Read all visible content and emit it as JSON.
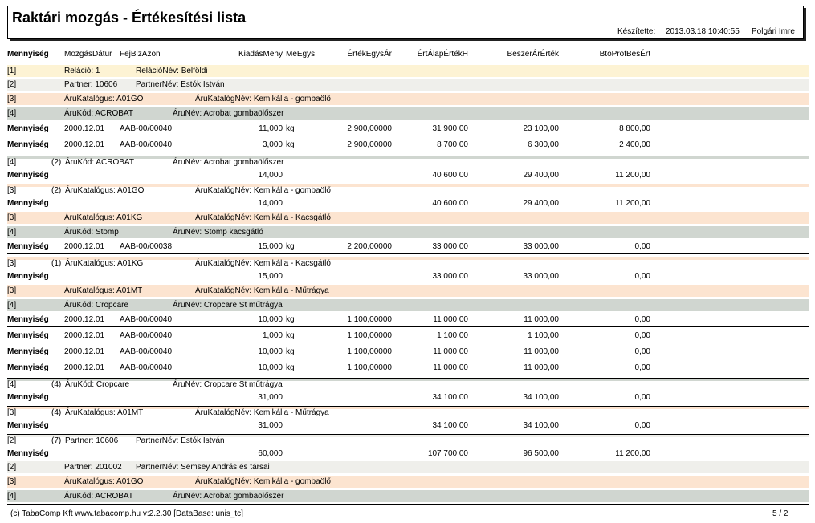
{
  "header": {
    "title": "Raktári mozgás - Értékesítési lista",
    "created_label": "Készítette:",
    "created_at": "2013.03.18 10:40:55",
    "author": "Polgári Imre"
  },
  "columns": {
    "mennyiseg": "Mennyiség",
    "mozgas_datum": "MozgásDátur",
    "fej_biz_azon": "FejBizAzon",
    "kiadas_meny": "KiadásMeny",
    "me_egys": "MeEgys",
    "ertek_egys_ar": "ÉrtékEgysÁr",
    "ert_alap_ertek": "ÉrtÁlapÉrtékH",
    "beszer_ar_ertek": "BeszerÁrÉrték",
    "bto_prof_bes_ert": "BtoProfBesÉrt"
  },
  "colors": {
    "relacio_bg": "#fdf3d4",
    "partner_bg": "#efefeb",
    "katalogus_bg": "#fce4d0",
    "arukod_bg": "#d0d6d0"
  },
  "rows": [
    {
      "kind": "relacio",
      "y": 81,
      "h": 15,
      "level": "[1]",
      "label1": "Reláció:  1",
      "label2": "RelációNév:  Belföldi"
    },
    {
      "kind": "partner",
      "y": 98,
      "h": 15,
      "level": "[2]",
      "label1": "Partner: 10606",
      "label2": "PartnerNév:  Estók István"
    },
    {
      "kind": "katalogus",
      "y": 116,
      "h": 15,
      "level": "[3]",
      "label1": "ÁruKatalógus: A01GO",
      "label2": "ÁruKatalógNév: Kemikália - gombaölő"
    },
    {
      "kind": "arukod",
      "y": 134,
      "h": 15,
      "level": "[4]",
      "label1": "ÁruKód: ACROBAT",
      "label2": "ÁruNév:  Acrobat gombaölőszer"
    },
    {
      "kind": "detail",
      "y": 152,
      "h": 18,
      "mennyiseg": "Mennyiség",
      "datum": "2000.12.01",
      "biz": "AAB-00/00040",
      "kiadas": "11,000",
      "me": "kg",
      "egysar": "2 900,00000",
      "alap": "31 900,00",
      "beszer": "23 100,00",
      "bto": "8 800,00"
    },
    {
      "kind": "detail",
      "y": 172,
      "h": 18,
      "mennyiseg": "Mennyiség",
      "datum": "2000.12.01",
      "biz": "AAB-00/00040",
      "kiadas": "3,000",
      "me": "kg",
      "egysar": "2 900,00000",
      "alap": "8 700,00",
      "beszer": "6 300,00",
      "bto": "2 400,00"
    },
    {
      "kind": "subtotal",
      "y": 194,
      "h": 34,
      "level": "[4]",
      "count": "(2)",
      "label1": "ÁruKód: ACROBAT",
      "label2": "ÁruNév:  Acrobat gombaölőszer",
      "mennyiseg": "Mennyiség",
      "kiadas": "14,000",
      "alap": "40 600,00",
      "beszer": "29 400,00",
      "bto": "11 200,00",
      "bar": "arukod"
    },
    {
      "kind": "subtotal",
      "y": 229,
      "h": 34,
      "level": "[3]",
      "count": "(2)",
      "label1": "ÁruKatalógus: A01GO",
      "label2": "ÁruKatalógNév: Kemikália - gombaölő",
      "mennyiseg": "Mennyiség",
      "kiadas": "14,000",
      "alap": "40 600,00",
      "beszer": "29 400,00",
      "bto": "11 200,00",
      "bar": "katalogus"
    },
    {
      "kind": "katalogus",
      "y": 264,
      "h": 15,
      "level": "[3]",
      "label1": "ÁruKatalógus: A01KG",
      "label2": "ÁruKatalógNév: Kemikália - Kacsgátló"
    },
    {
      "kind": "arukod",
      "y": 282,
      "h": 15,
      "level": "[4]",
      "label1": "ÁruKód: Stomp",
      "label2": "ÁruNév:  Stomp kacsgátló"
    },
    {
      "kind": "detail",
      "y": 299,
      "h": 18,
      "mennyiseg": "Mennyiség",
      "datum": "2000.12.01",
      "biz": "AAB-00/00038",
      "kiadas": "15,000",
      "me": "kg",
      "egysar": "2 200,00000",
      "alap": "33 000,00",
      "beszer": "33 000,00",
      "bto": "0,00"
    },
    {
      "kind": "subtotal",
      "y": 320,
      "h": 34,
      "level": "[3]",
      "count": "(1)",
      "label1": "ÁruKatalógus: A01KG",
      "label2": "ÁruKatalógNév: Kemikália - Kacsgátló",
      "mennyiseg": "Mennyiség",
      "kiadas": "15,000",
      "alap": "33 000,00",
      "beszer": "33 000,00",
      "bto": "0,00",
      "bar": "katalogus"
    },
    {
      "kind": "katalogus",
      "y": 355,
      "h": 15,
      "level": "[3]",
      "label1": "ÁruKatalógus: A01MT",
      "label2": "ÁruKatalógNév: Kemikália - Műtrágya"
    },
    {
      "kind": "arukod",
      "y": 373,
      "h": 15,
      "level": "[4]",
      "label1": "ÁruKód: Cropcare",
      "label2": "ÁruNév:  Cropcare St műtrágya"
    },
    {
      "kind": "detail",
      "y": 390,
      "h": 18,
      "mennyiseg": "Mennyiség",
      "datum": "2000.12.01",
      "biz": "AAB-00/00040",
      "kiadas": "10,000",
      "me": "kg",
      "egysar": "1 100,00000",
      "alap": "11 000,00",
      "beszer": "11 000,00",
      "bto": "0,00"
    },
    {
      "kind": "detail",
      "y": 410,
      "h": 18,
      "mennyiseg": "Mennyiség",
      "datum": "2000.12.01",
      "biz": "AAB-00/00040",
      "kiadas": "1,000",
      "me": "kg",
      "egysar": "1 100,00000",
      "alap": "1 100,00",
      "beszer": "1 100,00",
      "bto": "0,00"
    },
    {
      "kind": "detail",
      "y": 430,
      "h": 18,
      "mennyiseg": "Mennyiség",
      "datum": "2000.12.01",
      "biz": "AAB-00/00040",
      "kiadas": "10,000",
      "me": "kg",
      "egysar": "1 100,00000",
      "alap": "11 000,00",
      "beszer": "11 000,00",
      "bto": "0,00"
    },
    {
      "kind": "detail",
      "y": 450,
      "h": 18,
      "mennyiseg": "Mennyiség",
      "datum": "2000.12.01",
      "biz": "AAB-00/00040",
      "kiadas": "10,000",
      "me": "kg",
      "egysar": "1 100,00000",
      "alap": "11 000,00",
      "beszer": "11 000,00",
      "bto": "0,00"
    },
    {
      "kind": "subtotal",
      "y": 471,
      "h": 34,
      "level": "[4]",
      "count": "(4)",
      "label1": "ÁruKód: Cropcare",
      "label2": "ÁruNév:  Cropcare St műtrágya",
      "mennyiseg": "Mennyiség",
      "kiadas": "31,000",
      "alap": "34 100,00",
      "beszer": "34 100,00",
      "bto": "0,00",
      "bar": "arukod"
    },
    {
      "kind": "subtotal",
      "y": 506,
      "h": 34,
      "level": "[3]",
      "count": "(4)",
      "label1": "ÁruKatalógus: A01MT",
      "label2": "ÁruKatalógNév: Kemikália - Műtrágya",
      "mennyiseg": "Mennyiség",
      "kiadas": "31,000",
      "alap": "34 100,00",
      "beszer": "34 100,00",
      "bto": "0,00",
      "bar": "katalogus"
    },
    {
      "kind": "subtotal",
      "y": 541,
      "h": 34,
      "level": "[2]",
      "count": "(7)",
      "label1": "Partner: 10606",
      "label2": "PartnerNév:  Estók István",
      "mennyiseg": "Mennyiség",
      "kiadas": "60,000",
      "alap": "107 700,00",
      "beszer": "96 500,00",
      "bto": "11 200,00",
      "bar": "partner"
    },
    {
      "kind": "partner",
      "y": 575,
      "h": 15,
      "level": "[2]",
      "label1": "Partner: 201002",
      "label2": "PartnerNév:  Semsey András és társai"
    },
    {
      "kind": "katalogus",
      "y": 593,
      "h": 15,
      "level": "[3]",
      "label1": "ÁruKatalógus: A01GO",
      "label2": "ÁruKatalógNév: Kemikália - gombaölő"
    },
    {
      "kind": "arukod",
      "y": 611,
      "h": 15,
      "level": "[4]",
      "label1": "ÁruKód: ACROBAT",
      "label2": "ÁruNév:  Acrobat gombaölőszer"
    }
  ],
  "footer": {
    "left": "(c) TabaComp Kft  www.tabacomp.hu  v:2.2.30 [DataBase: unis_tc]",
    "page": "5  / 2"
  }
}
